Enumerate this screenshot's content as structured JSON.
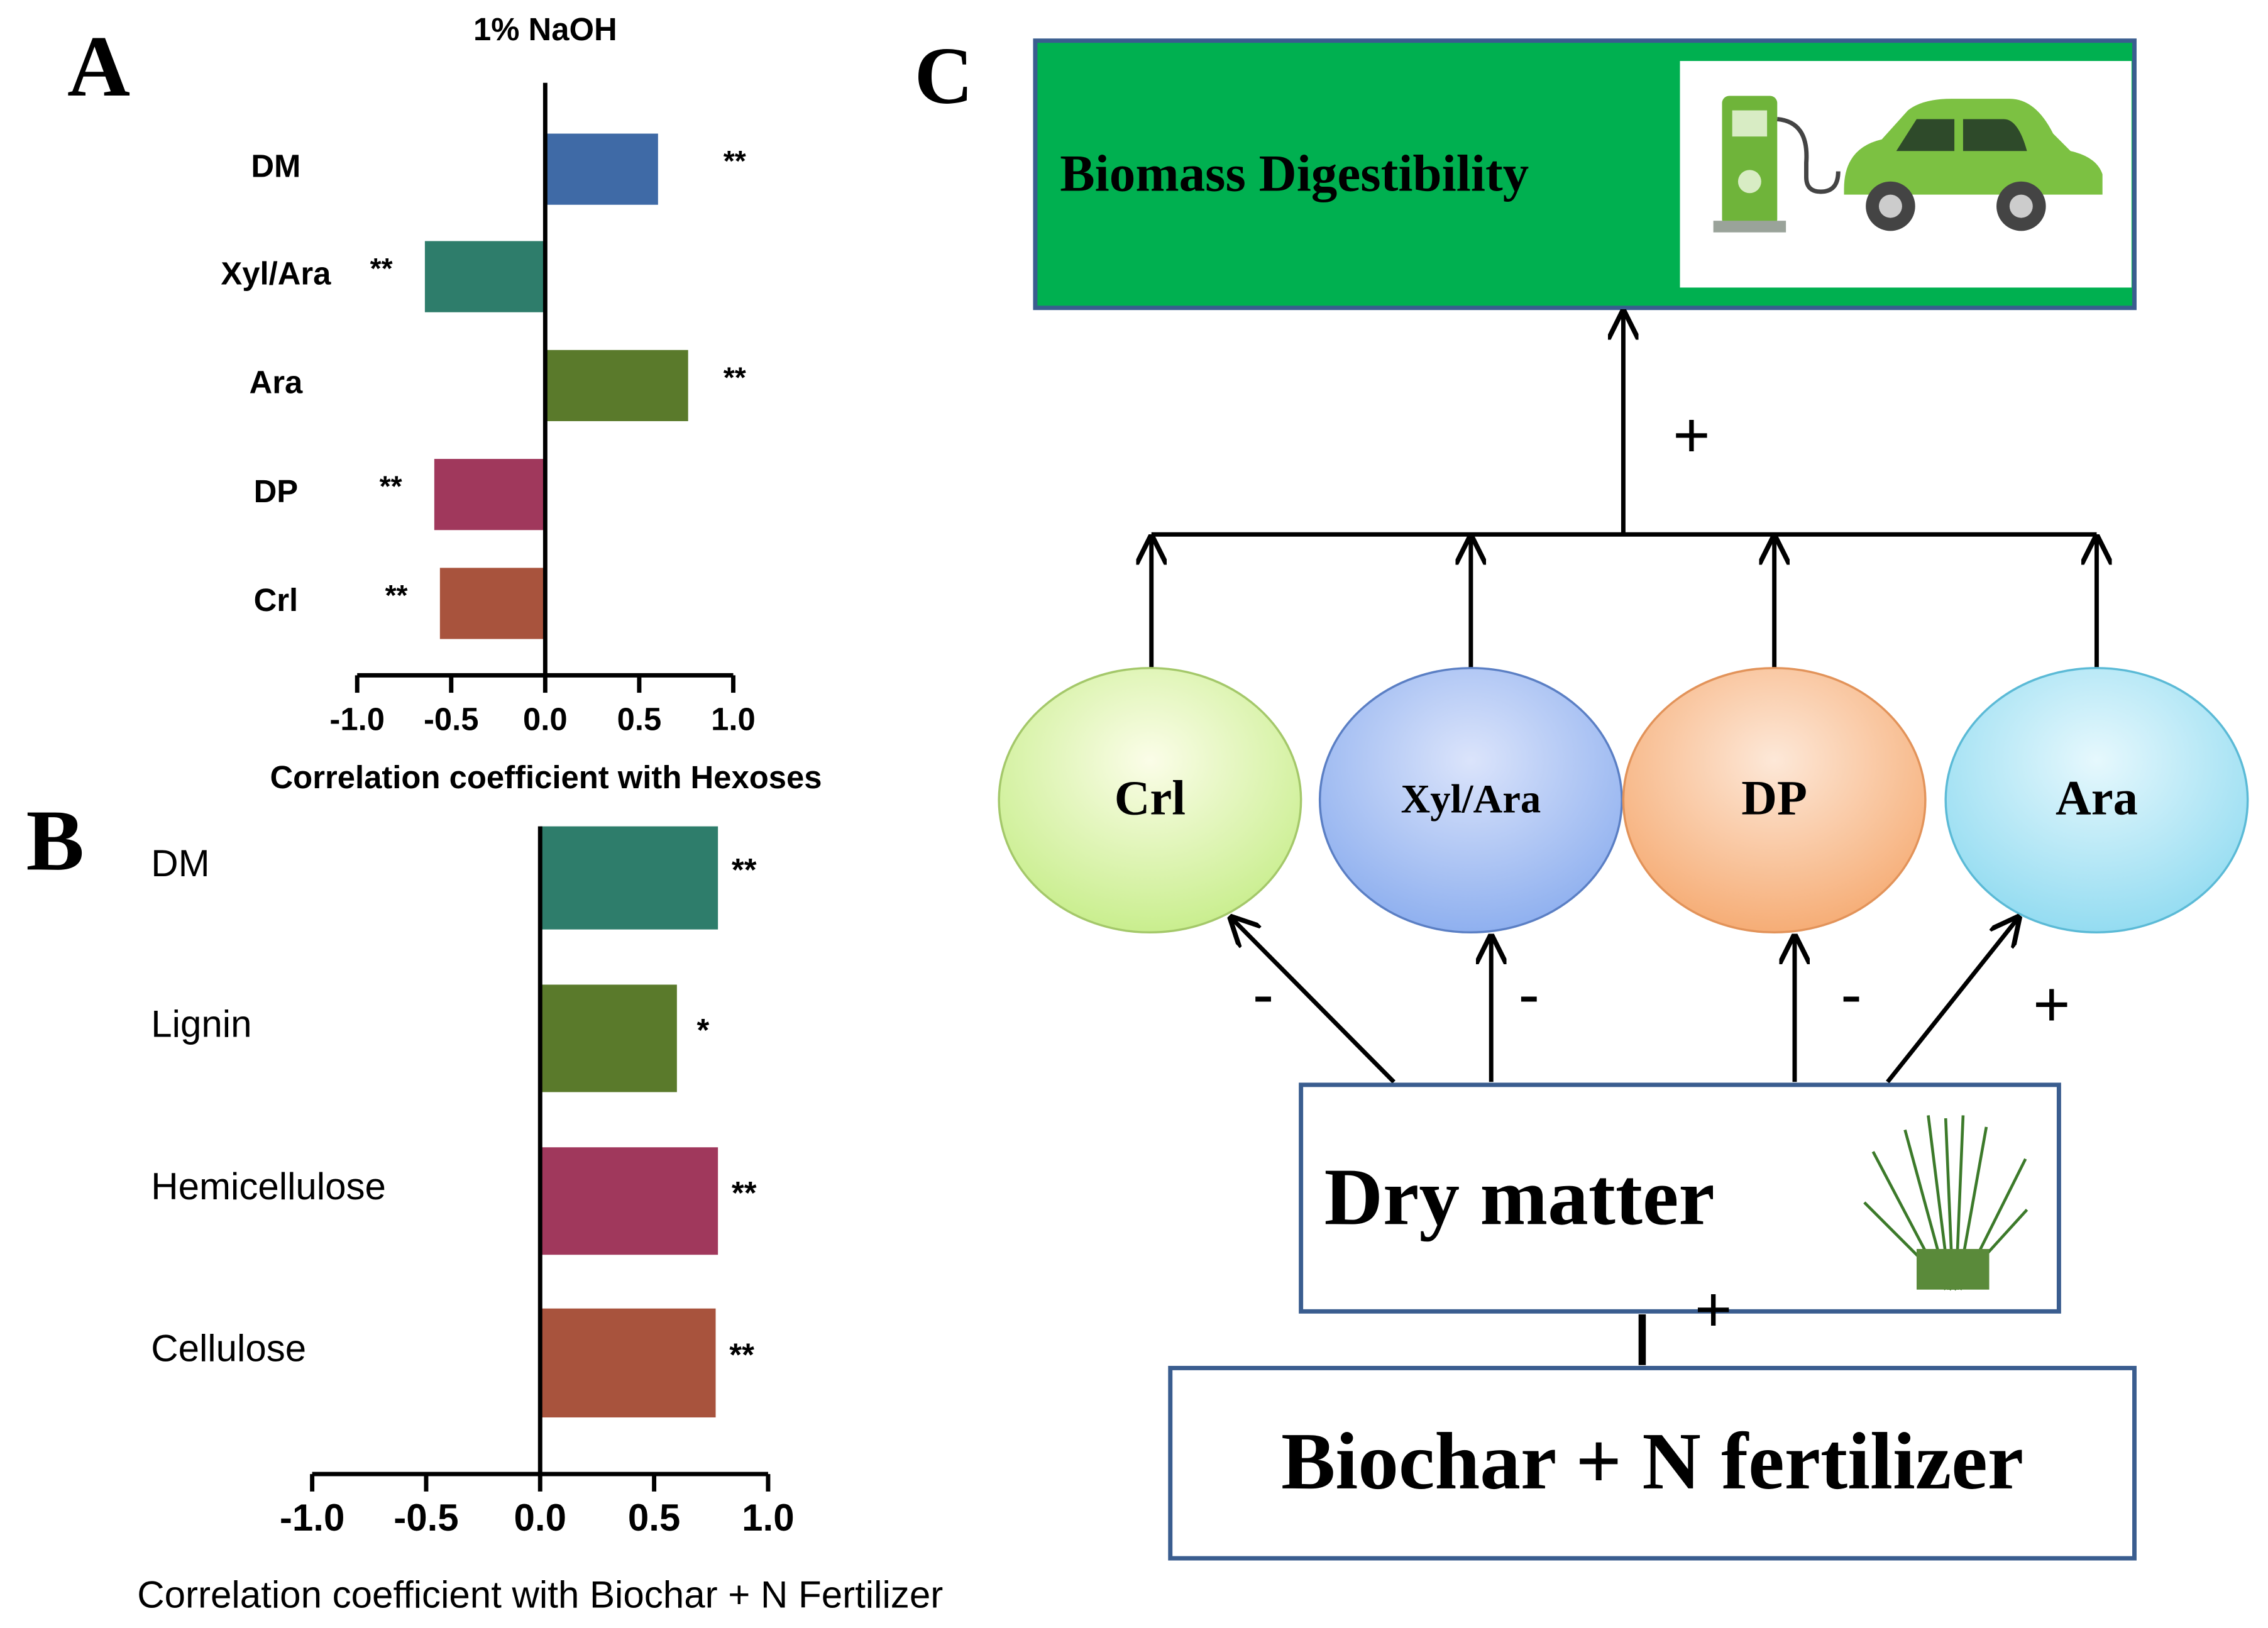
{
  "chart_data": [
    {
      "type": "bar",
      "orientation": "horizontal",
      "panel": "A",
      "title": "1% NaOH",
      "categories": [
        "DM",
        "Xyl/Ara",
        "Ara",
        "DP",
        "Crl"
      ],
      "values": [
        0.6,
        -0.64,
        0.76,
        -0.59,
        -0.56
      ],
      "significance": [
        "**",
        "**",
        "**",
        "**",
        "**"
      ],
      "colors": [
        "#3f6aa6",
        "#2e7d6b",
        "#5a7a2b",
        "#a0385c",
        "#a8533d"
      ],
      "xlim": [
        -1,
        1
      ],
      "xticks": [
        {
          "value": -1,
          "label": "-1.0"
        },
        {
          "value": -0.5,
          "label": "-0.5"
        },
        {
          "value": 0,
          "label": "0.0"
        },
        {
          "value": 0.5,
          "label": "0.5"
        },
        {
          "value": 1,
          "label": "1.0"
        }
      ],
      "xlabel": "Correlation coefficient with Hexoses"
    },
    {
      "type": "bar",
      "orientation": "horizontal",
      "panel": "B",
      "categories": [
        "DM",
        "Lignin",
        "Hemicellulose",
        "Cellulose"
      ],
      "values": [
        0.78,
        0.6,
        0.78,
        0.77
      ],
      "significance": [
        "**",
        "*",
        "**",
        "**"
      ],
      "colors": [
        "#2e7d6b",
        "#5a7a2b",
        "#a0385c",
        "#a8533d"
      ],
      "xlim": [
        -1,
        1
      ],
      "xticks": [
        {
          "value": -1,
          "label": "-1.0"
        },
        {
          "value": -0.5,
          "label": "-0.5"
        },
        {
          "value": 0,
          "label": "0.0"
        },
        {
          "value": 0.5,
          "label": "0.5"
        },
        {
          "value": 1,
          "label": "1.0"
        }
      ],
      "xlabel": "Correlation coefficient with Biochar + N Fertilizer"
    }
  ],
  "diagram": {
    "label": "C",
    "top_box": "Biomass Digestibility",
    "top_sign": "+",
    "nodes": [
      "Crl",
      "Xyl/Ara",
      "DP",
      "Ara"
    ],
    "node_signs": [
      "-",
      "-",
      "-",
      "+"
    ],
    "middle_box": "Dry matter",
    "bottom_sign": "+",
    "bottom_box": "Biochar + N fertilizer"
  }
}
